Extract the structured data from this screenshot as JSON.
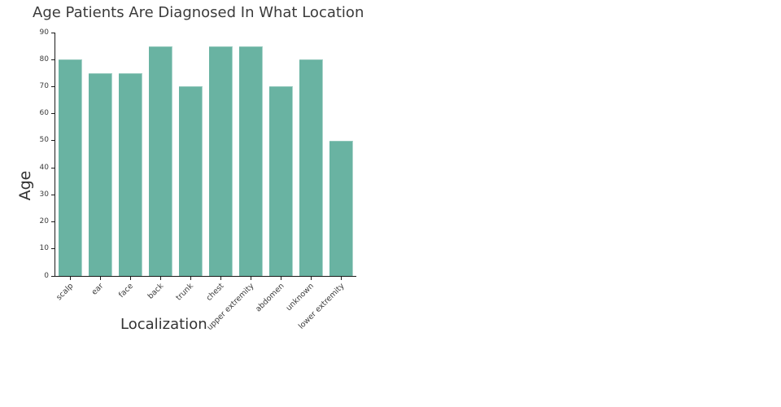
{
  "chart_data": {
    "type": "bar",
    "title": "Age Patients Are Diagnosed In What Location",
    "xlabel": "Localization",
    "ylabel": "Age",
    "categories": [
      "scalp",
      "ear",
      "face",
      "back",
      "trunk",
      "chest",
      "upper extremity",
      "abdomen",
      "unknown",
      "lower extremity"
    ],
    "values": [
      80,
      75,
      75,
      85,
      70,
      85,
      85,
      70,
      80,
      50
    ],
    "ylim": [
      0,
      90
    ],
    "yticks": [
      0,
      10,
      20,
      30,
      40,
      50,
      60,
      70,
      80,
      90
    ],
    "x_tick_rotation": -45,
    "grid": false,
    "legend": "none",
    "bar_color": "#69b3a2",
    "axis_color": "#1a1a1a",
    "text_color": "#3b3b3b"
  }
}
